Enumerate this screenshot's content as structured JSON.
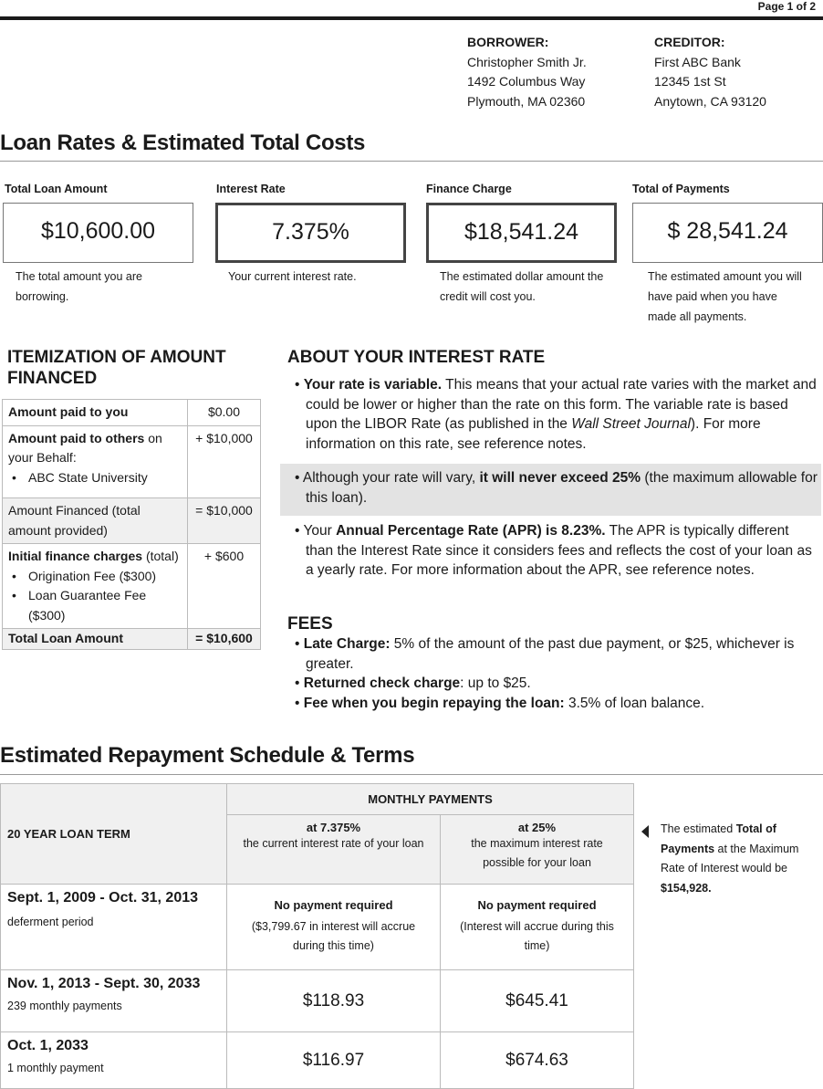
{
  "page_label": "Page 1 of 2",
  "borrower": {
    "heading": "BORROWER:",
    "name": "Christopher Smith Jr.",
    "street": "1492 Columbus Way",
    "city": "Plymouth, MA 02360"
  },
  "creditor": {
    "heading": "CREDITOR:",
    "name": "First ABC Bank",
    "street": "12345 1st St",
    "city": "Anytown, CA 93120"
  },
  "rates_title": "Loan Rates & Estimated Total Costs",
  "key_figures": [
    {
      "label": "Total Loan Amount",
      "value": "$10,600.00",
      "desc": "The total amount you are borrowing."
    },
    {
      "label": "Interest Rate",
      "value": "7.375%",
      "desc": "Your current interest rate."
    },
    {
      "label": "Finance Charge",
      "value": "$18,541.24",
      "desc": "The estimated dollar amount the credit will cost you."
    },
    {
      "label": "Total of Payments",
      "value": "$ 28,541.24",
      "desc": "The estimated amount you will have paid when you have made all payments."
    }
  ],
  "itemization": {
    "heading": "ITEMIZATION OF AMOUNT FINANCED",
    "rows": [
      {
        "label_bold": "Amount paid to you",
        "label": "",
        "bullets": [],
        "value": "$0.00"
      },
      {
        "label_bold": "Amount paid to others",
        "label": " on your Behalf:",
        "bullets": [
          "ABC State University"
        ],
        "value": "+ $10,000"
      },
      {
        "label_bold": "",
        "label": "Amount Financed (total amount provided)",
        "bullets": [],
        "value": "= $10,000"
      },
      {
        "label_bold": "Initial finance charges",
        "label": " (total)",
        "bullets": [
          "Origination Fee ($300)",
          "Loan Guarantee Fee ($300)"
        ],
        "value": "+ $600"
      },
      {
        "label_bold": "Total Loan Amount",
        "label": "",
        "bullets": [],
        "value": "= $10,600"
      }
    ]
  },
  "interest": {
    "heading": "ABOUT YOUR INTEREST RATE",
    "p1_bold": "Your rate is variable.",
    "p1_a": " This means that your actual rate varies with the market and could be lower or higher than the rate on this form.   The variable rate is based upon the LIBOR Rate (as published in the ",
    "p1_italic": "Wall Street Journal",
    "p1_b": ").  For more information on this rate, see reference notes.",
    "p2_a": "Although your rate will vary, ",
    "p2_bold": "it will never exceed 25%",
    "p2_b": " (the maximum allowable for this loan).",
    "p3_a": "Your ",
    "p3_bold": "Annual Percentage Rate (APR)  is 8.23%.",
    "p3_b": "  The APR is typically different than the Interest Rate since it considers fees and reflects the cost of your loan as a yearly rate.  For more information about the APR, see reference notes."
  },
  "fees": {
    "heading": "FEES",
    "items": [
      {
        "bold": "Late Charge:",
        "text": " 5% of the amount of the past due payment, or $25, whichever is greater."
      },
      {
        "bold": "Returned check charge",
        "text": ": up to $25."
      },
      {
        "bold": "Fee when you begin repaying the loan:",
        "text": " 3.5% of loan balance."
      }
    ]
  },
  "schedule_title": "Estimated Repayment Schedule & Terms",
  "schedule": {
    "term": "20 YEAR LOAN TERM",
    "monthly": "MONTHLY PAYMENTS",
    "col1_rate": "at 7.375%",
    "col1_desc": "the current interest rate of your loan",
    "col2_rate": "at 25%",
    "col2_desc": "the maximum interest rate possible for your loan",
    "rows": [
      {
        "period": "Sept. 1, 2009 - Oct. 31, 2013",
        "sub": "deferment period",
        "c1": "No payment required",
        "c1_note": "($3,799.67 in interest will accrue during this time)",
        "c2": "No payment required",
        "c2_note": "(Interest will accrue during this time)"
      },
      {
        "period": "Nov. 1, 2013 - Sept. 30, 2033",
        "sub": "239 monthly payments",
        "c1": "$118.93",
        "c2": "$645.41"
      },
      {
        "period": "Oct. 1, 2033",
        "sub": "1 monthly payment",
        "c1": "$116.97",
        "c2": "$674.63"
      }
    ],
    "note_a": "The estimated ",
    "note_bold": "Total of Payments",
    "note_b": " at the Maximum Rate of Interest would be ",
    "note_total": "$154,928."
  }
}
